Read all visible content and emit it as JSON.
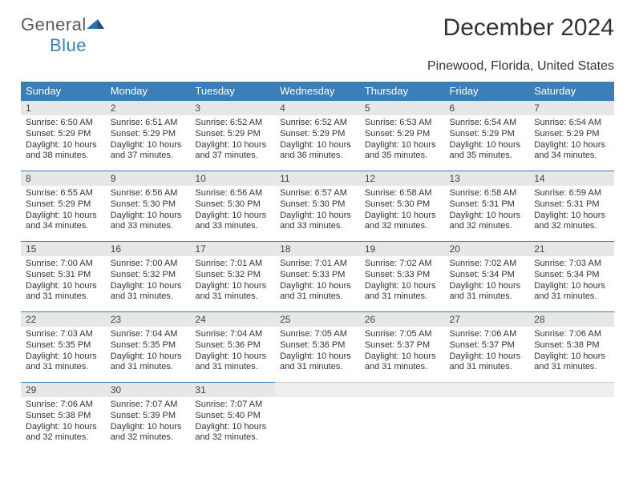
{
  "logo": {
    "general": "General",
    "blue": "Blue"
  },
  "title": "December 2024",
  "location": "Pinewood, Florida, United States",
  "colors": {
    "header_bg": "#3a7fb8",
    "header_text": "#ffffff",
    "daynum_bg": "#e7e7e7",
    "daynum_border": "#3a7fb8",
    "body_text": "#333333",
    "page_bg": "#ffffff"
  },
  "weekdays": [
    "Sunday",
    "Monday",
    "Tuesday",
    "Wednesday",
    "Thursday",
    "Friday",
    "Saturday"
  ],
  "weeks": [
    [
      {
        "n": "1",
        "sr": "Sunrise: 6:50 AM",
        "ss": "Sunset: 5:29 PM",
        "d1": "Daylight: 10 hours",
        "d2": "and 38 minutes."
      },
      {
        "n": "2",
        "sr": "Sunrise: 6:51 AM",
        "ss": "Sunset: 5:29 PM",
        "d1": "Daylight: 10 hours",
        "d2": "and 37 minutes."
      },
      {
        "n": "3",
        "sr": "Sunrise: 6:52 AM",
        "ss": "Sunset: 5:29 PM",
        "d1": "Daylight: 10 hours",
        "d2": "and 37 minutes."
      },
      {
        "n": "4",
        "sr": "Sunrise: 6:52 AM",
        "ss": "Sunset: 5:29 PM",
        "d1": "Daylight: 10 hours",
        "d2": "and 36 minutes."
      },
      {
        "n": "5",
        "sr": "Sunrise: 6:53 AM",
        "ss": "Sunset: 5:29 PM",
        "d1": "Daylight: 10 hours",
        "d2": "and 35 minutes."
      },
      {
        "n": "6",
        "sr": "Sunrise: 6:54 AM",
        "ss": "Sunset: 5:29 PM",
        "d1": "Daylight: 10 hours",
        "d2": "and 35 minutes."
      },
      {
        "n": "7",
        "sr": "Sunrise: 6:54 AM",
        "ss": "Sunset: 5:29 PM",
        "d1": "Daylight: 10 hours",
        "d2": "and 34 minutes."
      }
    ],
    [
      {
        "n": "8",
        "sr": "Sunrise: 6:55 AM",
        "ss": "Sunset: 5:29 PM",
        "d1": "Daylight: 10 hours",
        "d2": "and 34 minutes."
      },
      {
        "n": "9",
        "sr": "Sunrise: 6:56 AM",
        "ss": "Sunset: 5:30 PM",
        "d1": "Daylight: 10 hours",
        "d2": "and 33 minutes."
      },
      {
        "n": "10",
        "sr": "Sunrise: 6:56 AM",
        "ss": "Sunset: 5:30 PM",
        "d1": "Daylight: 10 hours",
        "d2": "and 33 minutes."
      },
      {
        "n": "11",
        "sr": "Sunrise: 6:57 AM",
        "ss": "Sunset: 5:30 PM",
        "d1": "Daylight: 10 hours",
        "d2": "and 33 minutes."
      },
      {
        "n": "12",
        "sr": "Sunrise: 6:58 AM",
        "ss": "Sunset: 5:30 PM",
        "d1": "Daylight: 10 hours",
        "d2": "and 32 minutes."
      },
      {
        "n": "13",
        "sr": "Sunrise: 6:58 AM",
        "ss": "Sunset: 5:31 PM",
        "d1": "Daylight: 10 hours",
        "d2": "and 32 minutes."
      },
      {
        "n": "14",
        "sr": "Sunrise: 6:59 AM",
        "ss": "Sunset: 5:31 PM",
        "d1": "Daylight: 10 hours",
        "d2": "and 32 minutes."
      }
    ],
    [
      {
        "n": "15",
        "sr": "Sunrise: 7:00 AM",
        "ss": "Sunset: 5:31 PM",
        "d1": "Daylight: 10 hours",
        "d2": "and 31 minutes."
      },
      {
        "n": "16",
        "sr": "Sunrise: 7:00 AM",
        "ss": "Sunset: 5:32 PM",
        "d1": "Daylight: 10 hours",
        "d2": "and 31 minutes."
      },
      {
        "n": "17",
        "sr": "Sunrise: 7:01 AM",
        "ss": "Sunset: 5:32 PM",
        "d1": "Daylight: 10 hours",
        "d2": "and 31 minutes."
      },
      {
        "n": "18",
        "sr": "Sunrise: 7:01 AM",
        "ss": "Sunset: 5:33 PM",
        "d1": "Daylight: 10 hours",
        "d2": "and 31 minutes."
      },
      {
        "n": "19",
        "sr": "Sunrise: 7:02 AM",
        "ss": "Sunset: 5:33 PM",
        "d1": "Daylight: 10 hours",
        "d2": "and 31 minutes."
      },
      {
        "n": "20",
        "sr": "Sunrise: 7:02 AM",
        "ss": "Sunset: 5:34 PM",
        "d1": "Daylight: 10 hours",
        "d2": "and 31 minutes."
      },
      {
        "n": "21",
        "sr": "Sunrise: 7:03 AM",
        "ss": "Sunset: 5:34 PM",
        "d1": "Daylight: 10 hours",
        "d2": "and 31 minutes."
      }
    ],
    [
      {
        "n": "22",
        "sr": "Sunrise: 7:03 AM",
        "ss": "Sunset: 5:35 PM",
        "d1": "Daylight: 10 hours",
        "d2": "and 31 minutes."
      },
      {
        "n": "23",
        "sr": "Sunrise: 7:04 AM",
        "ss": "Sunset: 5:35 PM",
        "d1": "Daylight: 10 hours",
        "d2": "and 31 minutes."
      },
      {
        "n": "24",
        "sr": "Sunrise: 7:04 AM",
        "ss": "Sunset: 5:36 PM",
        "d1": "Daylight: 10 hours",
        "d2": "and 31 minutes."
      },
      {
        "n": "25",
        "sr": "Sunrise: 7:05 AM",
        "ss": "Sunset: 5:36 PM",
        "d1": "Daylight: 10 hours",
        "d2": "and 31 minutes."
      },
      {
        "n": "26",
        "sr": "Sunrise: 7:05 AM",
        "ss": "Sunset: 5:37 PM",
        "d1": "Daylight: 10 hours",
        "d2": "and 31 minutes."
      },
      {
        "n": "27",
        "sr": "Sunrise: 7:06 AM",
        "ss": "Sunset: 5:37 PM",
        "d1": "Daylight: 10 hours",
        "d2": "and 31 minutes."
      },
      {
        "n": "28",
        "sr": "Sunrise: 7:06 AM",
        "ss": "Sunset: 5:38 PM",
        "d1": "Daylight: 10 hours",
        "d2": "and 31 minutes."
      }
    ],
    [
      {
        "n": "29",
        "sr": "Sunrise: 7:06 AM",
        "ss": "Sunset: 5:38 PM",
        "d1": "Daylight: 10 hours",
        "d2": "and 32 minutes."
      },
      {
        "n": "30",
        "sr": "Sunrise: 7:07 AM",
        "ss": "Sunset: 5:39 PM",
        "d1": "Daylight: 10 hours",
        "d2": "and 32 minutes."
      },
      {
        "n": "31",
        "sr": "Sunrise: 7:07 AM",
        "ss": "Sunset: 5:40 PM",
        "d1": "Daylight: 10 hours",
        "d2": "and 32 minutes."
      },
      {
        "empty": true
      },
      {
        "empty": true
      },
      {
        "empty": true
      },
      {
        "empty": true
      }
    ]
  ]
}
